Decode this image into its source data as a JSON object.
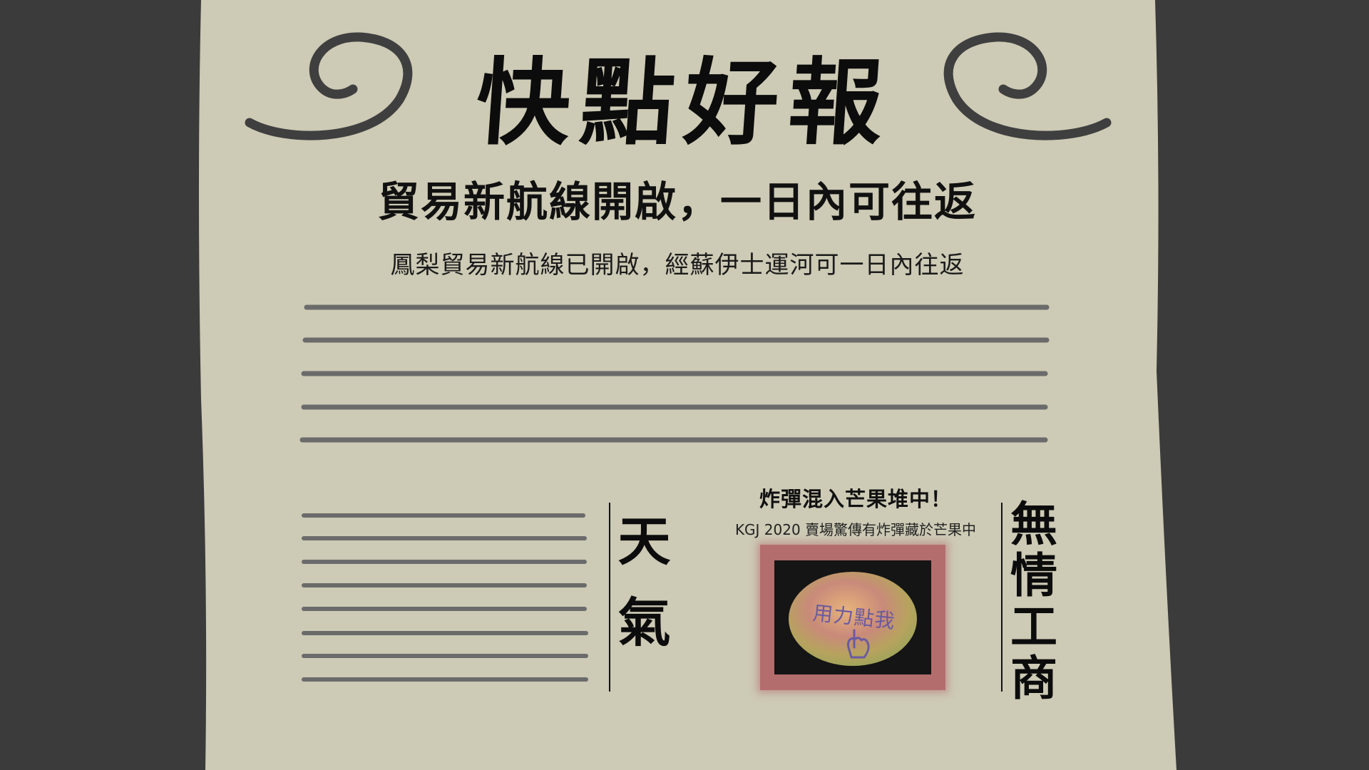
{
  "newspaper": {
    "masthead": "快點好報",
    "headline": "貿易新航線開啟，一日內可往返",
    "subheadline": "鳳梨貿易新航線已開啟，經蘇伊士運河可一日內往返"
  },
  "sections": {
    "weather_label": "天氣",
    "commerce_label": "無情工商"
  },
  "mango_story": {
    "title": "炸彈混入芒果堆中！",
    "caption": "KGJ 2020 賣場驚傳有炸彈藏於芒果中",
    "button_text": "用力點我",
    "icon": "pointing-hand-icon"
  },
  "colors": {
    "background": "#3b3b3b",
    "paper": "#cdcab5",
    "rule_line": "#6b6b6b",
    "swirl": "#3f3f3f",
    "mango_frame": "#b46d6d"
  }
}
